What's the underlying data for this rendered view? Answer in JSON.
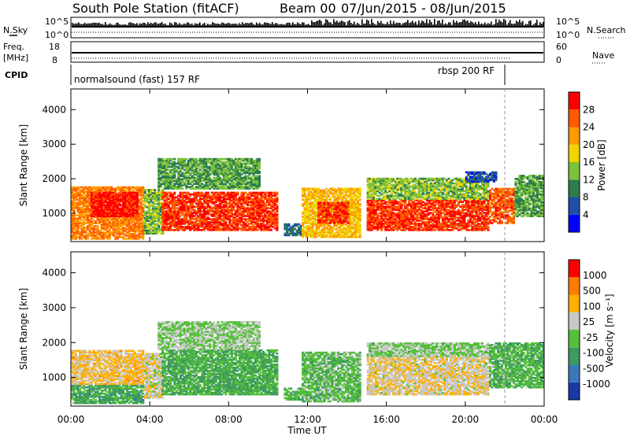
{
  "header": {
    "station": "South Pole Station (fitACF)",
    "beam": "Beam 00",
    "date_range": "07/Jun/2015 - 08/Jun/2015"
  },
  "summary": {
    "left_labels": {
      "nsky": "N.Sky",
      "freq_top": "Freq.",
      "freq_unit": "[MHz]",
      "cpid": "CPID"
    },
    "right_labels": {
      "nsearch": "N.Search",
      "nave": "Nave"
    },
    "nsky_ticks": [
      "10^5",
      "10^0"
    ],
    "nsearch_ticks": [
      "10^5",
      "10^0"
    ],
    "freq_ticks": [
      "18",
      "8"
    ],
    "nave_ticks": [
      "60",
      "0"
    ],
    "cpid_segments": [
      {
        "label": "normalsound (fast) 157 RF",
        "start_hour": 0.0,
        "end_hour": 21.9
      },
      {
        "label": "rbsp 200 RF",
        "start_hour": 21.9,
        "end_hour": 24.0
      }
    ]
  },
  "x_axis": {
    "title": "Time UT",
    "ticks": [
      "00:00",
      "04:00",
      "08:00",
      "12:00",
      "16:00",
      "20:00",
      "00:00"
    ]
  },
  "panels": [
    {
      "id": "power",
      "ylabel": "Slant Range [km]",
      "yticks": [
        "4000",
        "3000",
        "2000",
        "1000"
      ],
      "colorbar_label": "Power [dB]",
      "colorbar_ticks": [
        "28",
        "24",
        "20",
        "16",
        "12",
        "8",
        "4"
      ],
      "colors": [
        "#0000ff",
        "#1e4fa6",
        "#2e7d4f",
        "#7cc23a",
        "#f0d400",
        "#ff9a00",
        "#ff5a00",
        "#ff0000"
      ]
    },
    {
      "id": "velocity",
      "ylabel": "Slant Range [km]",
      "yticks": [
        "4000",
        "3000",
        "2000",
        "1000"
      ],
      "colorbar_label": "Velocity [m s⁻¹]",
      "colorbar_ticks": [
        "1000",
        "500",
        "100",
        "25",
        "-25",
        "-100",
        "-500",
        "-1000"
      ],
      "colors": [
        "#1a3aa8",
        "#3a78b8",
        "#3f9a60",
        "#55c03a",
        "#c8c8c8",
        "#ffb000",
        "#ff7a00",
        "#ff0000"
      ]
    }
  ],
  "chart_data": [
    {
      "type": "heatmap",
      "title": "Power",
      "xlabel": "Time UT",
      "ylabel": "Slant Range [km]",
      "xlim": [
        0,
        24
      ],
      "ylim": [
        180,
        4600
      ],
      "zlabel": "Power [dB]",
      "zlim": [
        0,
        32
      ],
      "regions": [
        {
          "t0": 0.0,
          "t1": 3.7,
          "r0": 250,
          "r1": 1750,
          "value": 24
        },
        {
          "t0": 1.0,
          "t1": 3.4,
          "r0": 900,
          "r1": 1600,
          "value": 30
        },
        {
          "t0": 3.7,
          "t1": 4.6,
          "r0": 400,
          "r1": 1700,
          "value": 14
        },
        {
          "t0": 4.6,
          "t1": 10.4,
          "r0": 500,
          "r1": 1600,
          "value": 28
        },
        {
          "t0": 4.4,
          "t1": 9.5,
          "r0": 1700,
          "r1": 2600,
          "value": 12
        },
        {
          "t0": 10.8,
          "t1": 11.7,
          "r0": 350,
          "r1": 700,
          "value": 8
        },
        {
          "t0": 11.7,
          "t1": 14.6,
          "r0": 300,
          "r1": 1700,
          "value": 20
        },
        {
          "t0": 12.5,
          "t1": 14.0,
          "r0": 700,
          "r1": 1300,
          "value": 28
        },
        {
          "t0": 15.0,
          "t1": 21.2,
          "r0": 500,
          "r1": 1400,
          "value": 28
        },
        {
          "t0": 15.0,
          "t1": 21.2,
          "r0": 1400,
          "r1": 2000,
          "value": 14
        },
        {
          "t0": 21.2,
          "t1": 22.5,
          "r0": 700,
          "r1": 1700,
          "value": 26
        },
        {
          "t0": 22.5,
          "t1": 24.0,
          "r0": 900,
          "r1": 2100,
          "value": 12
        },
        {
          "t0": 20.0,
          "t1": 21.6,
          "r0": 1900,
          "r1": 2200,
          "value": 6
        }
      ]
    },
    {
      "type": "heatmap",
      "title": "Velocity",
      "xlabel": "Time UT",
      "ylabel": "Slant Range [km]",
      "xlim": [
        0,
        24
      ],
      "ylim": [
        180,
        4600
      ],
      "zlabel": "Velocity [m s⁻¹]",
      "zlim": [
        -1000,
        1000
      ],
      "regions": [
        {
          "t0": 0.0,
          "t1": 3.7,
          "r0": 250,
          "r1": 800,
          "value": -300
        },
        {
          "t0": 0.0,
          "t1": 3.7,
          "r0": 800,
          "r1": 1750,
          "value": 300
        },
        {
          "t0": 3.7,
          "t1": 4.6,
          "r0": 400,
          "r1": 1700,
          "value": 150
        },
        {
          "t0": 4.6,
          "t1": 10.4,
          "r0": 500,
          "r1": 1800,
          "value": -250
        },
        {
          "t0": 4.4,
          "t1": 9.5,
          "r0": 1800,
          "r1": 2600,
          "value": -20
        },
        {
          "t0": 10.8,
          "t1": 11.7,
          "r0": 350,
          "r1": 700,
          "value": -200
        },
        {
          "t0": 11.7,
          "t1": 14.6,
          "r0": 300,
          "r1": 1700,
          "value": -150
        },
        {
          "t0": 15.0,
          "t1": 21.2,
          "r0": 500,
          "r1": 1600,
          "value": 200
        },
        {
          "t0": 15.0,
          "t1": 21.2,
          "r0": 1600,
          "r1": 2000,
          "value": -40
        },
        {
          "t0": 21.2,
          "t1": 24.0,
          "r0": 700,
          "r1": 2000,
          "value": -200
        }
      ]
    }
  ]
}
